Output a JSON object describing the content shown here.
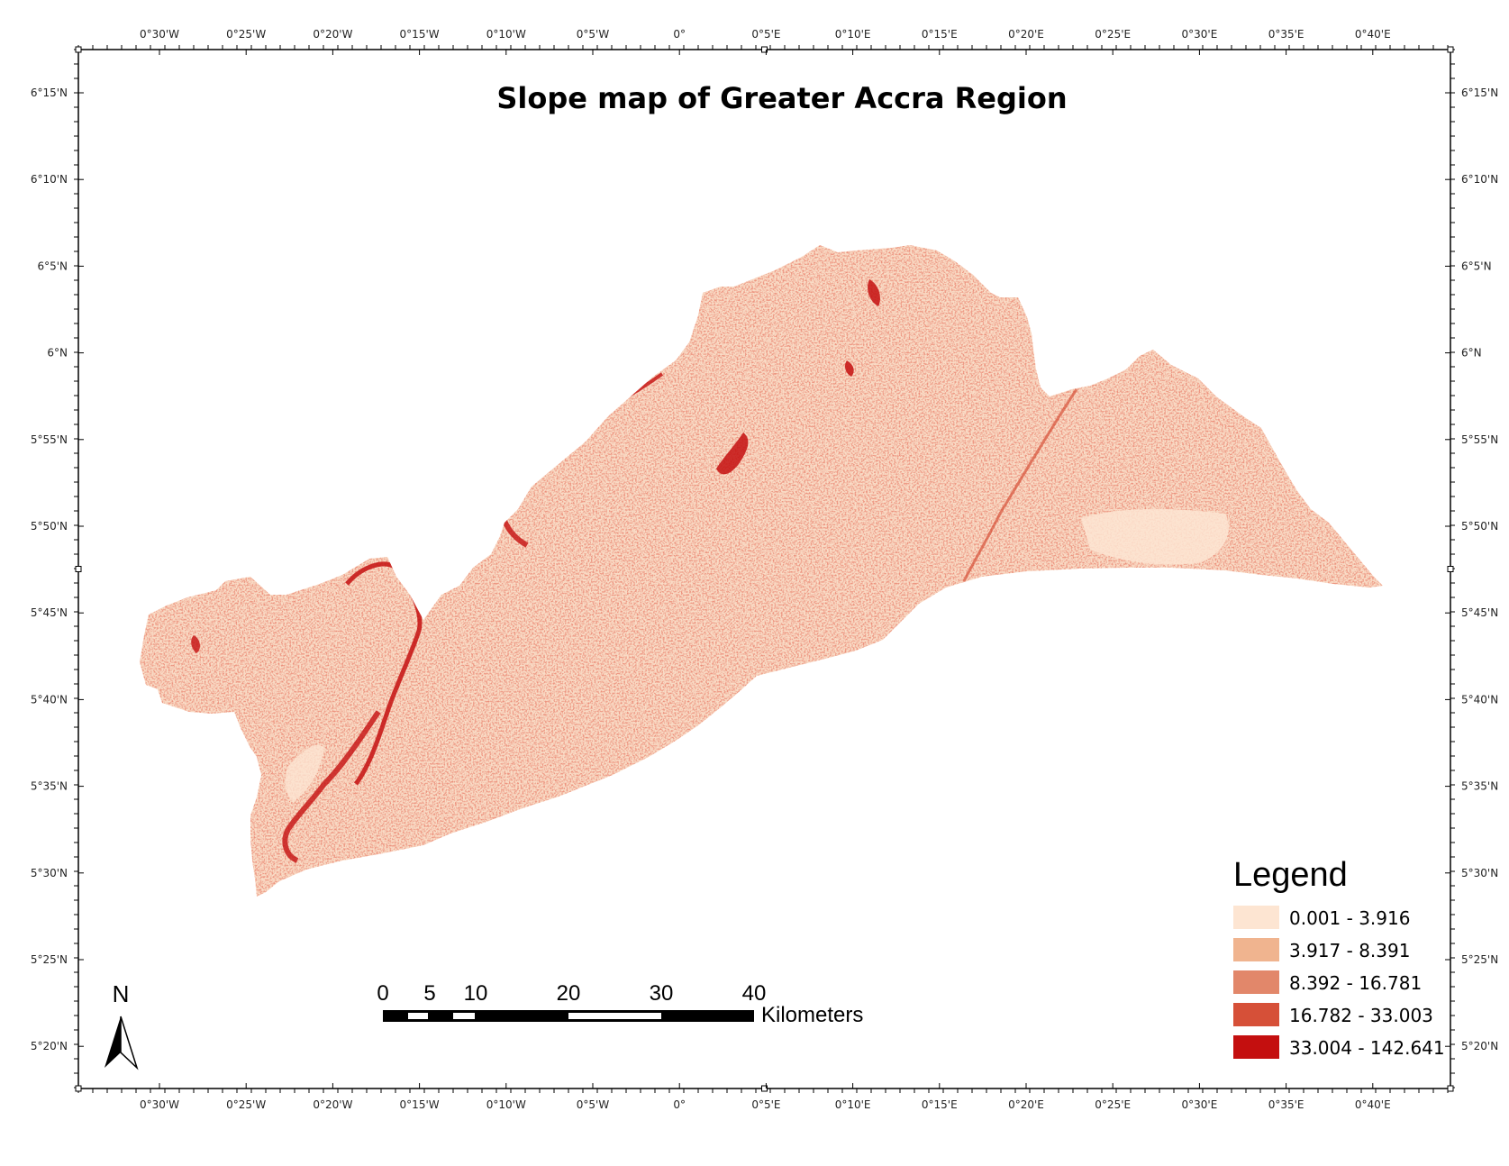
{
  "map": {
    "title": "Slope map of Greater Accra Region",
    "lon_labels": [
      "0°30'W",
      "0°25'W",
      "0°20'W",
      "0°15'W",
      "0°10'W",
      "0°5'W",
      "0°",
      "0°5'E",
      "0°10'E",
      "0°15'E",
      "0°20'E",
      "0°25'E",
      "0°30'E",
      "0°35'E",
      "0°40'E"
    ],
    "lat_labels": [
      "6°15'N",
      "6°10'N",
      "6°5'N",
      "6°N",
      "5°55'N",
      "5°50'N",
      "5°45'N",
      "5°40'N",
      "5°35'N",
      "5°30'N",
      "5°25'N",
      "5°20'N"
    ],
    "background_color": "#ffffff"
  },
  "legend": {
    "title": "Legend",
    "items": [
      {
        "label": "0.001 - 3.916",
        "color": "#fde5d2"
      },
      {
        "label": "3.917 - 8.391",
        "color": "#f0b48f"
      },
      {
        "label": "8.392 - 16.781",
        "color": "#e2876a"
      },
      {
        "label": "16.782 - 33.003",
        "color": "#d65038"
      },
      {
        "label": "33.004 - 142.641",
        "color": "#c40f0f"
      }
    ]
  },
  "scale_bar": {
    "labels": [
      "0",
      "5",
      "10",
      "20",
      "30",
      "40"
    ],
    "unit": "Kilometers"
  },
  "north_arrow": {
    "label": "N"
  }
}
